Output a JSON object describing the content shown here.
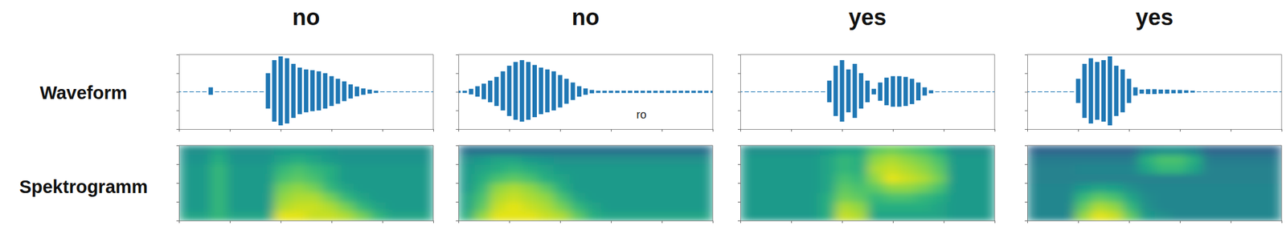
{
  "row_labels": [
    "Waveform",
    "Spektrogramm"
  ],
  "chart_data": [
    {
      "type": "waveform",
      "title": "no",
      "color": "#1f77b4",
      "tick_labels": false,
      "xlim": [
        0,
        1
      ],
      "ylim": [
        -1,
        1
      ],
      "xticks": [
        0,
        0.2,
        0.4,
        0.6,
        0.8,
        1
      ],
      "yticks": [
        -1,
        -0.5,
        0,
        0.5,
        1
      ],
      "x": [
        0,
        0.025,
        0.05,
        0.075,
        0.1,
        0.125,
        0.15,
        0.175,
        0.2,
        0.225,
        0.25,
        0.275,
        0.3,
        0.325,
        0.35,
        0.375,
        0.4,
        0.425,
        0.45,
        0.475,
        0.5,
        0.525,
        0.55,
        0.575,
        0.6,
        0.625,
        0.65,
        0.675,
        0.7,
        0.725,
        0.75,
        0.775,
        0.8,
        0.825,
        0.85,
        0.875,
        0.9,
        0.925,
        0.95,
        0.975,
        1
      ],
      "values": [
        0.01,
        0.01,
        0.01,
        0.01,
        0.01,
        0.12,
        0.01,
        0.01,
        0.01,
        0.01,
        0.01,
        0.01,
        0.01,
        0.01,
        0.5,
        0.85,
        0.95,
        0.9,
        0.75,
        0.65,
        0.6,
        0.58,
        0.55,
        0.5,
        0.42,
        0.35,
        0.28,
        0.2,
        0.14,
        0.09,
        0.06,
        0.03,
        0.01,
        0.01,
        0.01,
        0.01,
        0.01,
        0.01,
        0.01,
        0.01,
        0.01
      ],
      "lower": [
        -0.01,
        -0.01,
        -0.01,
        -0.01,
        -0.01,
        -0.08,
        -0.01,
        -0.01,
        -0.01,
        -0.01,
        -0.01,
        -0.01,
        -0.01,
        -0.01,
        -0.45,
        -0.8,
        -0.9,
        -0.85,
        -0.7,
        -0.6,
        -0.55,
        -0.52,
        -0.5,
        -0.45,
        -0.38,
        -0.32,
        -0.25,
        -0.18,
        -0.12,
        -0.08,
        -0.05,
        -0.03,
        -0.01,
        -0.01,
        -0.01,
        -0.01,
        -0.01,
        -0.01,
        -0.01,
        -0.01,
        -0.01
      ]
    },
    {
      "type": "waveform",
      "title": "no",
      "color": "#1f77b4",
      "tick_labels": false,
      "xlim": [
        0,
        1
      ],
      "ylim": [
        -1,
        1
      ],
      "xticks": [
        0,
        0.2,
        0.4,
        0.6,
        0.8,
        1
      ],
      "yticks": [
        -1,
        -0.5,
        0,
        0.5,
        1
      ],
      "x": [
        0,
        0.025,
        0.05,
        0.075,
        0.1,
        0.125,
        0.15,
        0.175,
        0.2,
        0.225,
        0.25,
        0.275,
        0.3,
        0.325,
        0.35,
        0.375,
        0.4,
        0.425,
        0.45,
        0.475,
        0.5,
        0.525,
        0.55,
        0.575,
        0.6,
        0.625,
        0.65,
        0.675,
        0.7,
        0.725,
        0.75,
        0.775,
        0.8,
        0.825,
        0.85,
        0.875,
        0.9,
        0.925,
        0.95,
        0.975,
        1
      ],
      "values": [
        0.03,
        0.03,
        0.08,
        0.15,
        0.22,
        0.3,
        0.4,
        0.55,
        0.7,
        0.8,
        0.85,
        0.8,
        0.72,
        0.65,
        0.6,
        0.55,
        0.45,
        0.35,
        0.25,
        0.15,
        0.09,
        0.05,
        0.03,
        0.03,
        0.03,
        0.03,
        0.03,
        0.03,
        0.03,
        0.03,
        0.03,
        0.03,
        0.03,
        0.03,
        0.03,
        0.03,
        0.03,
        0.03,
        0.03,
        0.03,
        0.03
      ],
      "lower": [
        -0.03,
        -0.03,
        -0.07,
        -0.13,
        -0.2,
        -0.28,
        -0.38,
        -0.5,
        -0.65,
        -0.75,
        -0.8,
        -0.75,
        -0.68,
        -0.6,
        -0.55,
        -0.5,
        -0.42,
        -0.32,
        -0.22,
        -0.13,
        -0.08,
        -0.04,
        -0.03,
        -0.03,
        -0.03,
        -0.03,
        -0.03,
        -0.03,
        -0.03,
        -0.03,
        -0.03,
        -0.03,
        -0.03,
        -0.03,
        -0.03,
        -0.03,
        -0.03,
        -0.03,
        -0.03,
        -0.03,
        -0.03
      ],
      "annotations": [
        {
          "text": "ro",
          "x": 0.72,
          "y": -0.62
        }
      ]
    },
    {
      "type": "waveform",
      "title": "yes",
      "color": "#1f77b4",
      "tick_labels": false,
      "xlim": [
        0,
        1
      ],
      "ylim": [
        -1,
        1
      ],
      "xticks": [
        0,
        0.2,
        0.4,
        0.6,
        0.8,
        1
      ],
      "yticks": [
        -1,
        -0.5,
        0,
        0.5,
        1
      ],
      "x": [
        0,
        0.025,
        0.05,
        0.075,
        0.1,
        0.125,
        0.15,
        0.175,
        0.2,
        0.225,
        0.25,
        0.275,
        0.3,
        0.325,
        0.35,
        0.375,
        0.4,
        0.425,
        0.45,
        0.475,
        0.5,
        0.525,
        0.55,
        0.575,
        0.6,
        0.625,
        0.65,
        0.675,
        0.7,
        0.725,
        0.75,
        0.775,
        0.8,
        0.825,
        0.85,
        0.875,
        0.9,
        0.925,
        0.95,
        0.975,
        1
      ],
      "values": [
        0.01,
        0.01,
        0.01,
        0.01,
        0.01,
        0.01,
        0.01,
        0.01,
        0.01,
        0.01,
        0.01,
        0.01,
        0.01,
        0.01,
        0.3,
        0.7,
        0.85,
        0.6,
        0.75,
        0.5,
        0.3,
        0.08,
        0.25,
        0.38,
        0.42,
        0.42,
        0.4,
        0.35,
        0.25,
        0.12,
        0.04,
        0.01,
        0.01,
        0.01,
        0.01,
        0.01,
        0.01,
        0.01,
        0.01,
        0.01,
        0.01
      ],
      "lower": [
        -0.01,
        -0.01,
        -0.01,
        -0.01,
        -0.01,
        -0.01,
        -0.01,
        -0.01,
        -0.01,
        -0.01,
        -0.01,
        -0.01,
        -0.01,
        -0.01,
        -0.28,
        -0.65,
        -0.8,
        -0.55,
        -0.7,
        -0.45,
        -0.28,
        -0.07,
        -0.24,
        -0.36,
        -0.4,
        -0.4,
        -0.38,
        -0.33,
        -0.23,
        -0.1,
        -0.04,
        -0.01,
        -0.01,
        -0.01,
        -0.01,
        -0.01,
        -0.01,
        -0.01,
        -0.01,
        -0.01,
        -0.01
      ]
    },
    {
      "type": "waveform",
      "title": "yes",
      "color": "#1f77b4",
      "tick_labels": false,
      "xlim": [
        0,
        1
      ],
      "ylim": [
        -1,
        1
      ],
      "xticks": [
        0,
        0.2,
        0.4,
        0.6,
        0.8,
        1
      ],
      "yticks": [
        -1,
        -0.5,
        0,
        0.5,
        1
      ],
      "x": [
        0,
        0.025,
        0.05,
        0.075,
        0.1,
        0.125,
        0.15,
        0.175,
        0.2,
        0.225,
        0.25,
        0.275,
        0.3,
        0.325,
        0.35,
        0.375,
        0.4,
        0.425,
        0.45,
        0.475,
        0.5,
        0.525,
        0.55,
        0.575,
        0.6,
        0.625,
        0.65,
        0.675,
        0.7,
        0.725,
        0.75,
        0.775,
        0.8,
        0.825,
        0.85,
        0.875,
        0.9,
        0.925,
        0.95,
        0.975,
        1
      ],
      "values": [
        0.01,
        0.01,
        0.01,
        0.01,
        0.01,
        0.01,
        0.01,
        0.01,
        0.35,
        0.75,
        0.9,
        0.8,
        0.85,
        0.95,
        0.7,
        0.6,
        0.35,
        0.12,
        0.06,
        0.07,
        0.07,
        0.06,
        0.06,
        0.05,
        0.05,
        0.04,
        0.03,
        0.01,
        0.01,
        0.01,
        0.01,
        0.01,
        0.01,
        0.01,
        0.01,
        0.01,
        0.01,
        0.01,
        0.01,
        0.01,
        0.01
      ],
      "lower": [
        -0.01,
        -0.01,
        -0.01,
        -0.01,
        -0.01,
        -0.01,
        -0.01,
        -0.01,
        -0.3,
        -0.7,
        -0.85,
        -0.75,
        -0.8,
        -0.9,
        -0.65,
        -0.55,
        -0.3,
        -0.1,
        -0.05,
        -0.06,
        -0.06,
        -0.05,
        -0.05,
        -0.04,
        -0.04,
        -0.03,
        -0.02,
        -0.01,
        -0.01,
        -0.01,
        -0.01,
        -0.01,
        -0.01,
        -0.01,
        -0.01,
        -0.01,
        -0.01,
        -0.01,
        -0.01,
        -0.01,
        -0.01
      ]
    },
    {
      "type": "heatmap",
      "tick_labels": false,
      "zlim": [
        -0.2,
        1
      ],
      "xlim": [
        0,
        1
      ],
      "ylim": [
        0,
        1
      ],
      "xticks": [
        0,
        0.2,
        0.4,
        0.6,
        0.8,
        1
      ],
      "yticks": [
        0,
        0.25,
        0.5,
        0.75,
        1
      ],
      "cells": [
        [
          0.5,
          0.5,
          0.6,
          0.5,
          0.5,
          0.5,
          0.95,
          0.95,
          0.9,
          0.9,
          0.85,
          0.75,
          0.6,
          0.5,
          0.5,
          0.5
        ],
        [
          0.45,
          0.45,
          0.6,
          0.45,
          0.45,
          0.45,
          0.85,
          0.9,
          0.9,
          0.85,
          0.75,
          0.6,
          0.5,
          0.45,
          0.45,
          0.45
        ],
        [
          0.45,
          0.45,
          0.6,
          0.45,
          0.45,
          0.45,
          0.8,
          0.85,
          0.85,
          0.75,
          0.6,
          0.5,
          0.45,
          0.45,
          0.45,
          0.45
        ],
        [
          0.45,
          0.45,
          0.6,
          0.45,
          0.45,
          0.45,
          0.75,
          0.8,
          0.75,
          0.6,
          0.5,
          0.45,
          0.45,
          0.45,
          0.45,
          0.45
        ],
        [
          0.45,
          0.45,
          0.6,
          0.45,
          0.45,
          0.45,
          0.65,
          0.7,
          0.65,
          0.55,
          0.45,
          0.45,
          0.45,
          0.45,
          0.45,
          0.45
        ],
        [
          0.45,
          0.45,
          0.6,
          0.45,
          0.45,
          0.45,
          0.6,
          0.65,
          0.6,
          0.55,
          0.45,
          0.45,
          0.45,
          0.45,
          0.45,
          0.45
        ],
        [
          0.42,
          0.42,
          0.55,
          0.42,
          0.42,
          0.42,
          0.5,
          0.55,
          0.5,
          0.45,
          0.42,
          0.42,
          0.42,
          0.42,
          0.42,
          0.42
        ],
        [
          0.4,
          0.4,
          0.5,
          0.4,
          0.4,
          0.4,
          0.45,
          0.45,
          0.45,
          0.42,
          0.4,
          0.4,
          0.4,
          0.4,
          0.4,
          0.4
        ]
      ]
    },
    {
      "type": "heatmap",
      "tick_labels": false,
      "zlim": [
        -0.2,
        1
      ],
      "xlim": [
        0,
        1
      ],
      "ylim": [
        0,
        1
      ],
      "xticks": [
        0,
        0.2,
        0.4,
        0.6,
        0.8,
        1
      ],
      "yticks": [
        0,
        0.25,
        0.5,
        0.75,
        1
      ],
      "cells": [
        [
          0.55,
          0.8,
          0.95,
          0.95,
          0.95,
          0.9,
          0.85,
          0.7,
          0.55,
          0.5,
          0.5,
          0.5,
          0.5,
          0.5,
          0.5,
          0.5
        ],
        [
          0.5,
          0.7,
          0.9,
          0.95,
          0.9,
          0.85,
          0.75,
          0.6,
          0.5,
          0.45,
          0.45,
          0.45,
          0.45,
          0.45,
          0.45,
          0.45
        ],
        [
          0.5,
          0.65,
          0.85,
          0.9,
          0.85,
          0.8,
          0.65,
          0.5,
          0.45,
          0.45,
          0.45,
          0.45,
          0.45,
          0.45,
          0.45,
          0.45
        ],
        [
          0.45,
          0.6,
          0.8,
          0.85,
          0.8,
          0.7,
          0.55,
          0.45,
          0.45,
          0.45,
          0.45,
          0.45,
          0.45,
          0.45,
          0.45,
          0.45
        ],
        [
          0.45,
          0.55,
          0.65,
          0.7,
          0.65,
          0.55,
          0.5,
          0.45,
          0.45,
          0.45,
          0.45,
          0.45,
          0.45,
          0.45,
          0.45,
          0.45
        ],
        [
          0.45,
          0.5,
          0.55,
          0.6,
          0.55,
          0.5,
          0.45,
          0.45,
          0.45,
          0.45,
          0.45,
          0.45,
          0.45,
          0.45,
          0.45,
          0.45
        ],
        [
          0.4,
          0.45,
          0.5,
          0.5,
          0.45,
          0.42,
          0.4,
          0.4,
          0.4,
          0.4,
          0.4,
          0.4,
          0.4,
          0.4,
          0.4,
          0.4
        ],
        [
          0.25,
          0.25,
          0.25,
          0.25,
          0.25,
          0.25,
          0.25,
          0.25,
          0.25,
          0.25,
          0.25,
          0.25,
          0.25,
          0.25,
          0.25,
          0.25
        ]
      ]
    },
    {
      "type": "heatmap",
      "tick_labels": false,
      "zlim": [
        -0.2,
        1
      ],
      "xlim": [
        0,
        1
      ],
      "ylim": [
        0,
        1
      ],
      "xticks": [
        0,
        0.2,
        0.4,
        0.6,
        0.8,
        1
      ],
      "yticks": [
        0,
        0.25,
        0.5,
        0.75,
        1
      ],
      "cells": [
        [
          0.45,
          0.45,
          0.45,
          0.45,
          0.45,
          0.55,
          0.9,
          0.85,
          0.5,
          0.5,
          0.5,
          0.5,
          0.5,
          0.45,
          0.45,
          0.45
        ],
        [
          0.45,
          0.45,
          0.45,
          0.45,
          0.45,
          0.55,
          0.85,
          0.8,
          0.55,
          0.55,
          0.55,
          0.55,
          0.5,
          0.45,
          0.45,
          0.45
        ],
        [
          0.45,
          0.45,
          0.45,
          0.45,
          0.45,
          0.55,
          0.75,
          0.7,
          0.6,
          0.65,
          0.65,
          0.6,
          0.55,
          0.45,
          0.45,
          0.45
        ],
        [
          0.45,
          0.45,
          0.45,
          0.45,
          0.45,
          0.5,
          0.7,
          0.65,
          0.7,
          0.8,
          0.8,
          0.75,
          0.65,
          0.45,
          0.45,
          0.45
        ],
        [
          0.45,
          0.45,
          0.45,
          0.45,
          0.45,
          0.5,
          0.65,
          0.6,
          0.8,
          0.95,
          0.9,
          0.85,
          0.75,
          0.45,
          0.45,
          0.45
        ],
        [
          0.45,
          0.45,
          0.45,
          0.45,
          0.45,
          0.5,
          0.6,
          0.55,
          0.85,
          0.9,
          0.85,
          0.8,
          0.7,
          0.45,
          0.45,
          0.45
        ],
        [
          0.45,
          0.45,
          0.45,
          0.45,
          0.45,
          0.5,
          0.6,
          0.55,
          0.8,
          0.85,
          0.8,
          0.75,
          0.65,
          0.45,
          0.45,
          0.45
        ],
        [
          0.4,
          0.4,
          0.4,
          0.4,
          0.4,
          0.45,
          0.5,
          0.5,
          0.7,
          0.75,
          0.7,
          0.65,
          0.55,
          0.4,
          0.4,
          0.4
        ]
      ]
    },
    {
      "type": "heatmap",
      "tick_labels": false,
      "zlim": [
        -0.2,
        1
      ],
      "xlim": [
        0,
        1
      ],
      "ylim": [
        0,
        1
      ],
      "xticks": [
        0,
        0.2,
        0.4,
        0.6,
        0.8,
        1
      ],
      "yticks": [
        0,
        0.25,
        0.5,
        0.75,
        1
      ],
      "cells": [
        [
          0.35,
          0.35,
          0.35,
          0.8,
          0.95,
          0.9,
          0.7,
          0.45,
          0.4,
          0.35,
          0.35,
          0.35,
          0.35,
          0.35,
          0.35,
          0.35
        ],
        [
          0.35,
          0.35,
          0.35,
          0.7,
          0.85,
          0.8,
          0.6,
          0.4,
          0.35,
          0.35,
          0.35,
          0.35,
          0.35,
          0.35,
          0.35,
          0.35
        ],
        [
          0.35,
          0.35,
          0.35,
          0.6,
          0.7,
          0.65,
          0.5,
          0.38,
          0.35,
          0.35,
          0.35,
          0.35,
          0.35,
          0.35,
          0.35,
          0.35
        ],
        [
          0.35,
          0.35,
          0.35,
          0.45,
          0.5,
          0.48,
          0.4,
          0.35,
          0.35,
          0.35,
          0.35,
          0.35,
          0.35,
          0.35,
          0.35,
          0.35
        ],
        [
          0.33,
          0.33,
          0.33,
          0.33,
          0.33,
          0.33,
          0.33,
          0.33,
          0.33,
          0.33,
          0.33,
          0.33,
          0.33,
          0.33,
          0.33,
          0.33
        ],
        [
          0.33,
          0.33,
          0.33,
          0.35,
          0.35,
          0.35,
          0.35,
          0.5,
          0.6,
          0.6,
          0.5,
          0.33,
          0.33,
          0.33,
          0.33,
          0.33
        ],
        [
          0.3,
          0.3,
          0.3,
          0.3,
          0.3,
          0.3,
          0.3,
          0.55,
          0.65,
          0.65,
          0.55,
          0.3,
          0.3,
          0.3,
          0.3,
          0.3
        ],
        [
          0.2,
          0.2,
          0.2,
          0.2,
          0.2,
          0.2,
          0.2,
          0.35,
          0.4,
          0.4,
          0.35,
          0.2,
          0.2,
          0.2,
          0.2,
          0.2
        ]
      ]
    }
  ]
}
